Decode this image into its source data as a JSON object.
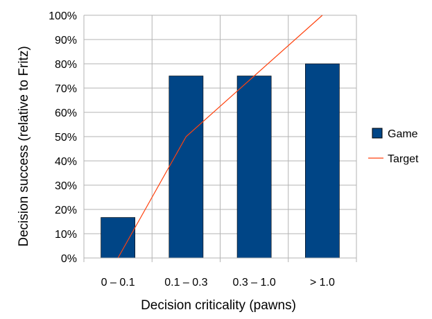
{
  "chart_data": {
    "type": "bar",
    "title": "",
    "xlabel": "Decision criticality (pawns)",
    "ylabel": "Decision success (relative to Fritz)",
    "categories": [
      "0 – 0.1",
      "0.1 – 0.3",
      "0.3 – 1.0",
      "> 1.0"
    ],
    "ylim": [
      0,
      100
    ],
    "yticks": [
      "0%",
      "10%",
      "20%",
      "30%",
      "40%",
      "50%",
      "60%",
      "70%",
      "80%",
      "90%",
      "100%"
    ],
    "grid": true,
    "legend_position": "right",
    "series": [
      {
        "name": "Game",
        "kind": "bar",
        "color": "#004586",
        "values": [
          16.7,
          75,
          75,
          80
        ]
      },
      {
        "name": "Target",
        "kind": "line",
        "color": "#ff420e",
        "values": [
          0,
          50,
          75,
          100
        ]
      }
    ]
  }
}
